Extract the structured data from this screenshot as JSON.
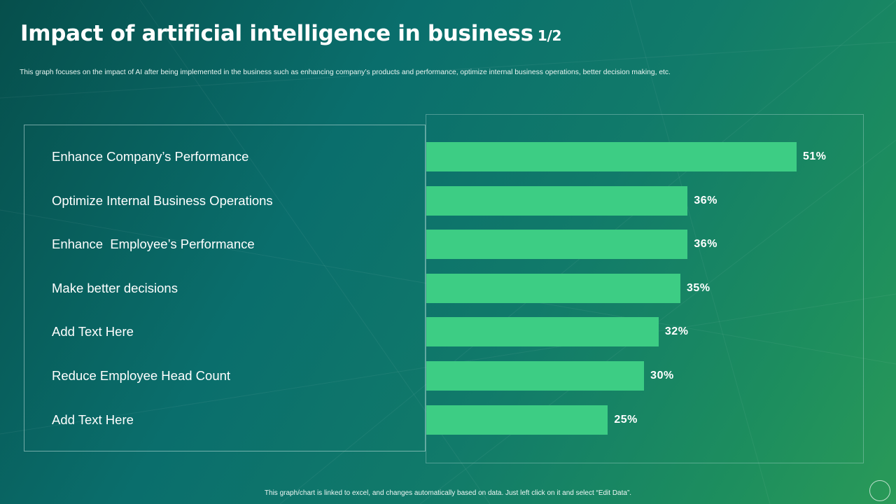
{
  "title": "Impact of artificial intelligence in business",
  "page_indicator": "1/2",
  "subtitle": "This graph focuses on the impact of AI after being implemented  in the business such as enhancing company’s products and performance, optimize internal business operations, better decision making, etc.",
  "footer": "This graph/chart is linked to excel, and changes automatically based on data. Just left click on it and select “Edit Data”.",
  "chart_data": {
    "type": "bar",
    "orientation": "horizontal",
    "categories": [
      "Enhance Company’s Performance",
      "Optimize Internal Business Operations",
      "Enhance  Employee’s Performance",
      "Make better decisions",
      "Add Text Here",
      "Reduce Employee Head Count",
      "Add Text Here"
    ],
    "values": [
      51,
      36,
      36,
      35,
      32,
      30,
      25
    ],
    "value_labels": [
      "51%",
      "36%",
      "36%",
      "35%",
      "32%",
      "30%",
      "25%"
    ],
    "xlim": [
      0,
      60
    ],
    "grid": false,
    "legend": "none",
    "bar_color": "#3dcd84"
  }
}
